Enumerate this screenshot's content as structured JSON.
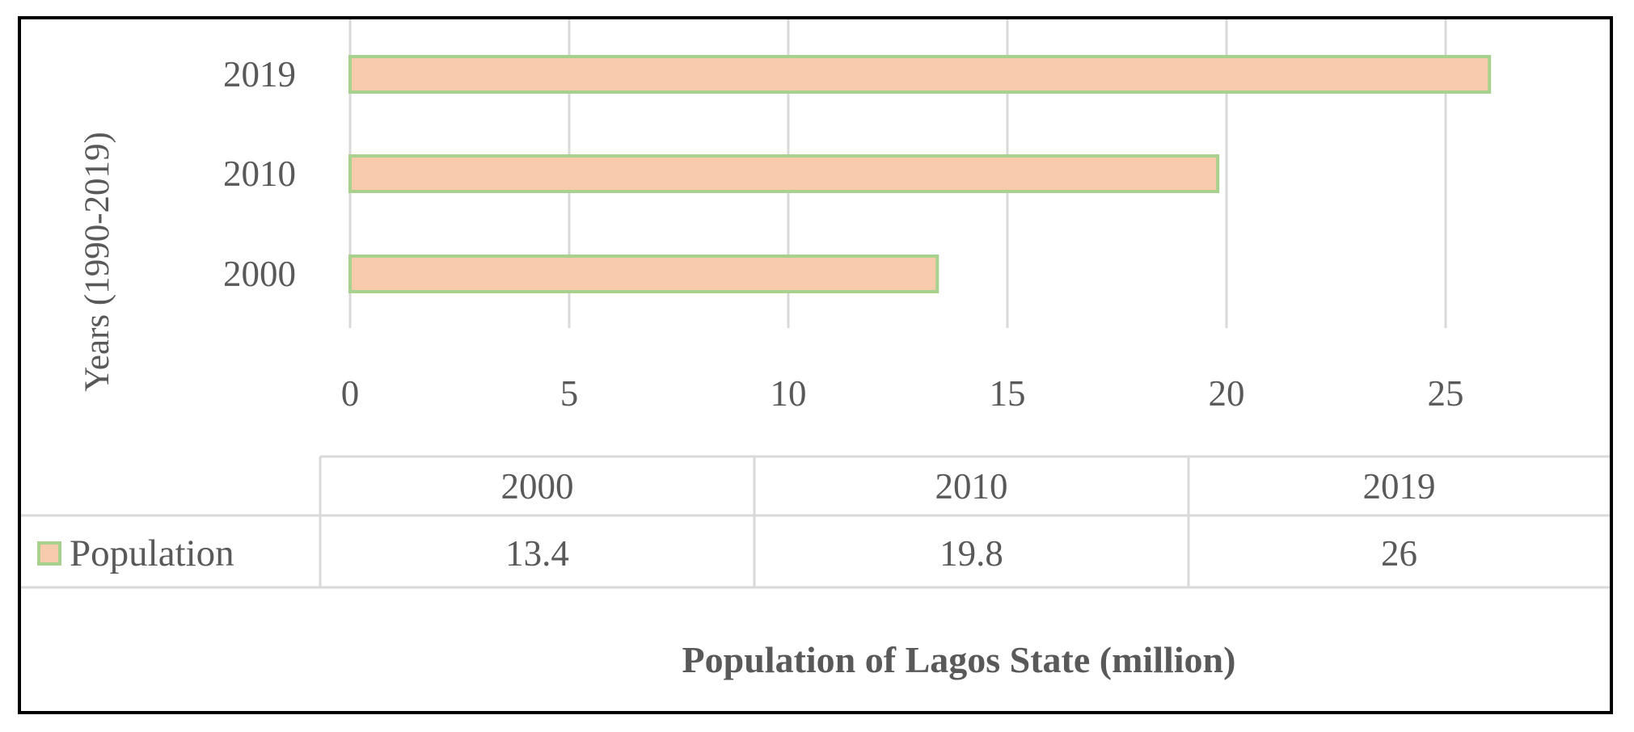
{
  "chart_data": {
    "type": "bar",
    "orientation": "horizontal",
    "categories": [
      "2000",
      "2010",
      "2019"
    ],
    "series": [
      {
        "name": "Population",
        "values": [
          13.4,
          19.8,
          26
        ]
      }
    ],
    "ylabel": "Years (1990-2019)",
    "xlabel": "Population of Lagos State (million)",
    "x_ticks": [
      "0",
      "5",
      "10",
      "15",
      "20",
      "25"
    ],
    "xlim": [
      0,
      26.8
    ],
    "grid": true,
    "data_table": {
      "header": [
        "2000",
        "2010",
        "2019"
      ],
      "row_label": "Population",
      "values": [
        "13.4",
        "19.8",
        "26"
      ]
    },
    "colors": {
      "bar_fill": "#f8cbad",
      "bar_stroke": "#a9d18e",
      "grid": "#d9d9d9",
      "text": "#595959",
      "border": "#000000"
    }
  }
}
